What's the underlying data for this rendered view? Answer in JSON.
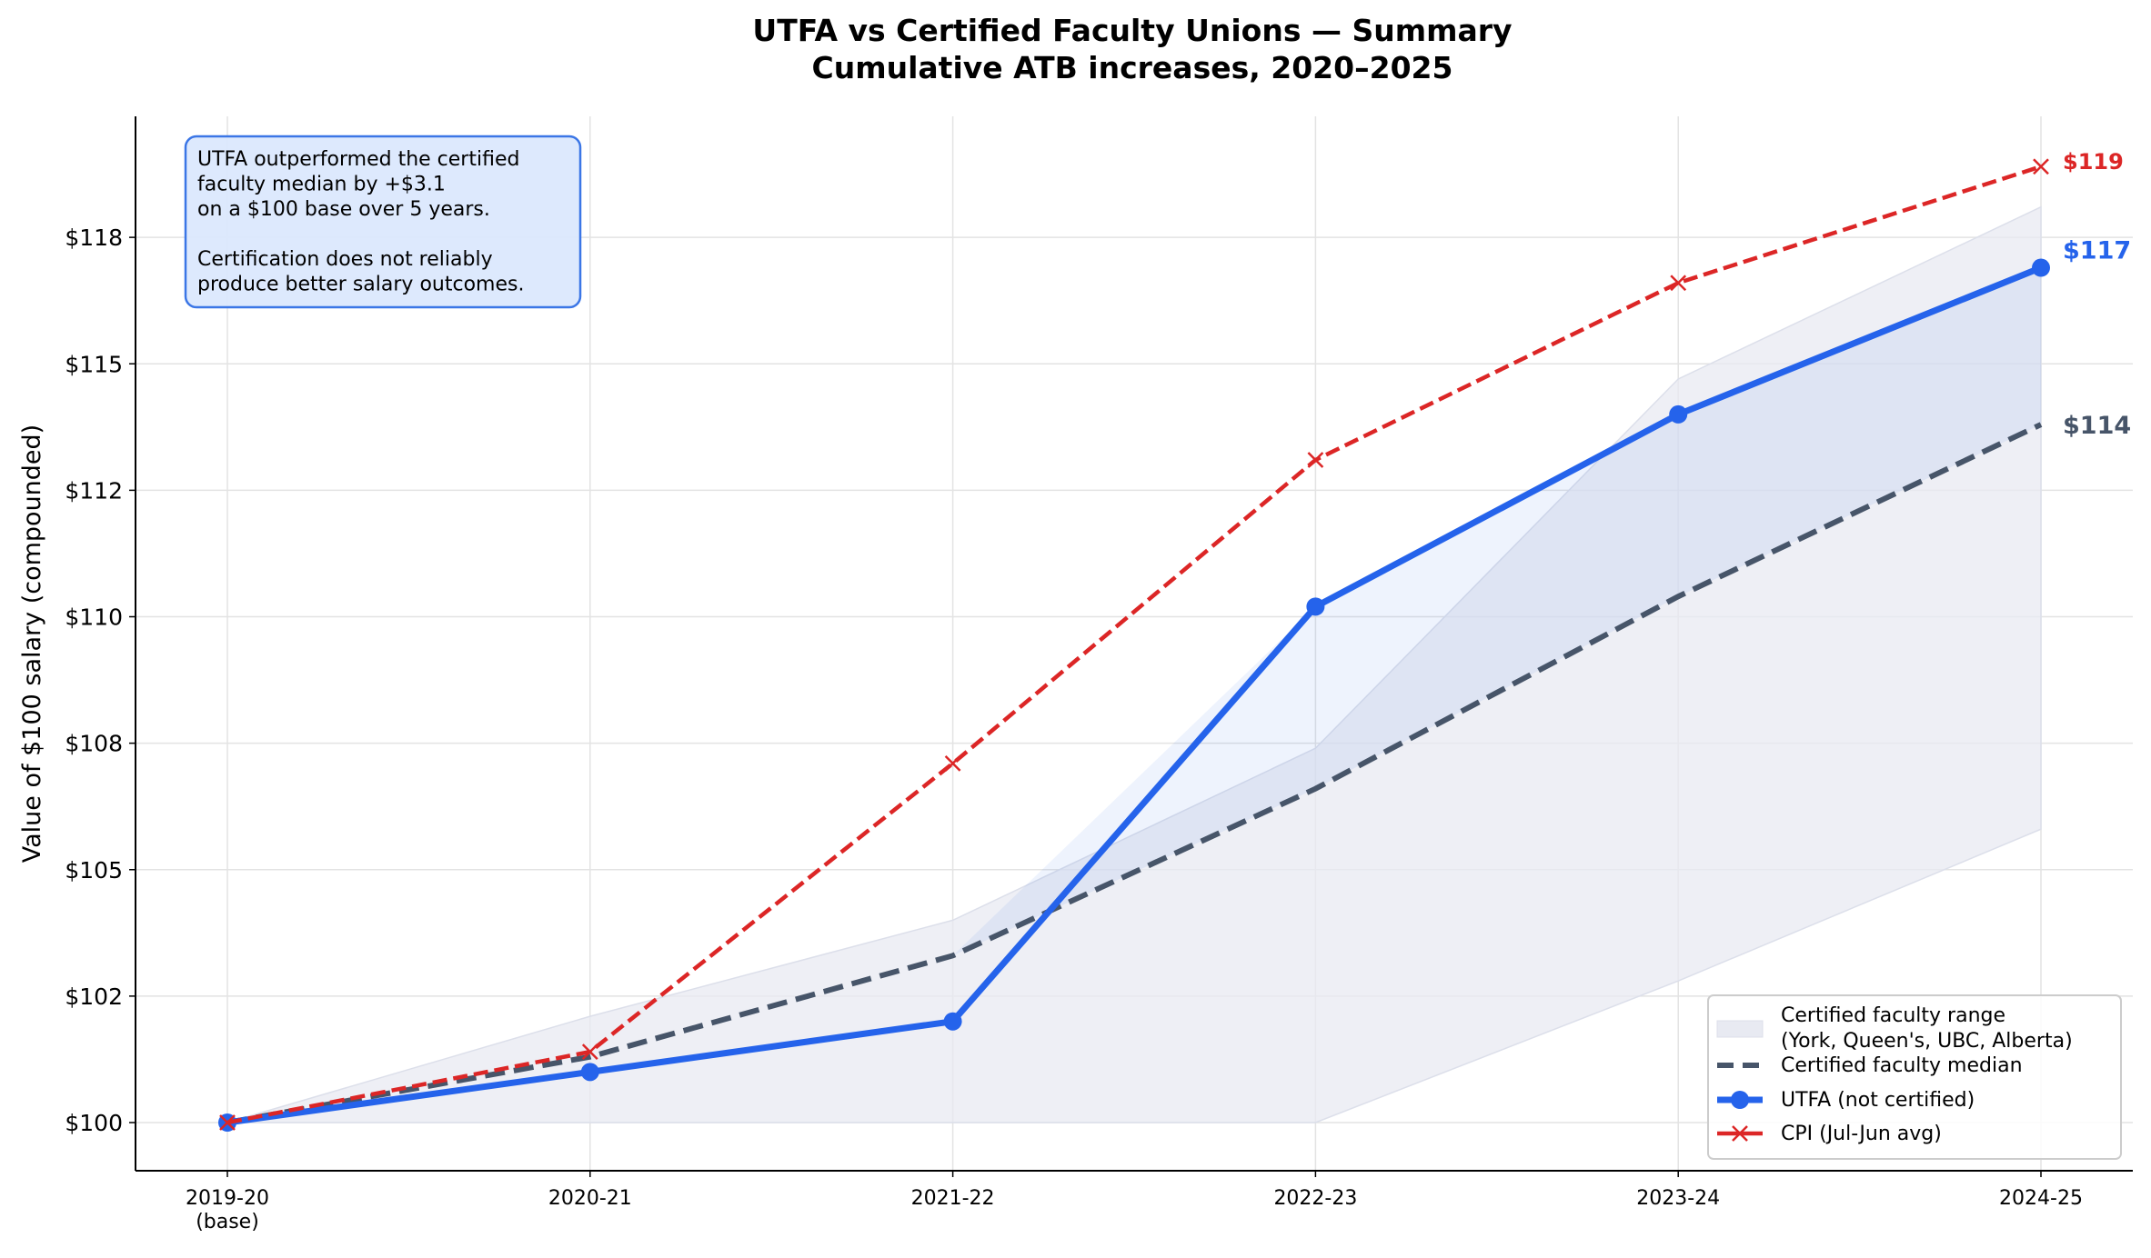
{
  "chart_data": {
    "type": "line",
    "title": "UTFA vs Certified Faculty Unions — Summary",
    "subtitle": "Cumulative ATB increases, 2020–2025",
    "ylabel": "Value of $100 salary (compounded)",
    "xlabel": "",
    "categories": [
      "2019-20\n(base)",
      "2020-21",
      "2021-22",
      "2022-23",
      "2023-24",
      "2024-25"
    ],
    "ylim": [
      99.1,
      120.1
    ],
    "yticks": [
      100,
      102.5,
      105,
      107.5,
      110,
      112.5,
      115,
      117.5
    ],
    "ytick_labels": [
      "$100",
      "$102",
      "$105",
      "$108",
      "$110",
      "$112",
      "$115",
      "$118"
    ],
    "grid": true,
    "legend_position": "bottom-right",
    "range": {
      "name": "Certified faculty range\n(York, Queen's, UBC, Alberta)",
      "lower": [
        100,
        100,
        100,
        100,
        102.8,
        105.8
      ],
      "upper": [
        100,
        102.1,
        104.0,
        107.4,
        114.7,
        118.1
      ],
      "color": "#e8eaf2"
    },
    "series": [
      {
        "name": "Certified faculty median",
        "values": [
          100,
          101.3,
          103.3,
          106.6,
          110.4,
          113.8
        ],
        "color": "#475569",
        "style": "dashed",
        "end_label": "$114"
      },
      {
        "name": "UTFA (not certified)",
        "values": [
          100,
          101.0,
          102.0,
          110.2,
          114.0,
          116.9
        ],
        "color": "#2563eb",
        "style": "solid-marker",
        "end_label": "$117"
      },
      {
        "name": "CPI (Jul-Jun avg)",
        "values": [
          100,
          101.4,
          107.1,
          113.1,
          116.6,
          118.9
        ],
        "color": "#dc2626",
        "style": "dashed-x",
        "end_label": "$119"
      }
    ],
    "annotation": "UTFA outperformed the certified\nfaculty median by +$3.1\non a $100 base over 5 years.\n\nCertification does not reliably\nproduce better salary outcomes."
  }
}
